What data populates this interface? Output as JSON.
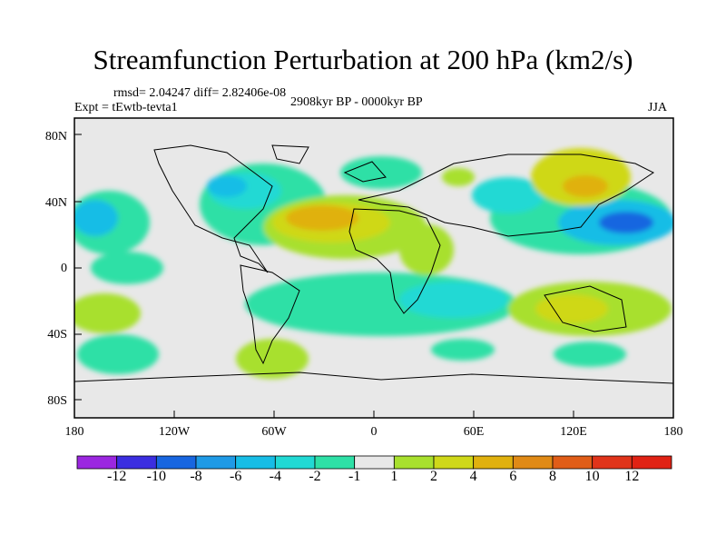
{
  "title": "Streamfunction Perturbation at 200 hPa (km2/s)",
  "stats": "rmsd= 2.04247 diff= 2.82406e-08",
  "experiment": "Expt = tEwtb-tevta1",
  "period": "2908kyr BP - 0000kyr BP",
  "season": "JJA",
  "lat_labels": [
    "80N",
    "40N",
    "0",
    "40S",
    "80S"
  ],
  "lon_labels": [
    "180",
    "120W",
    "60W",
    "0",
    "60E",
    "120E",
    "180"
  ],
  "colorbar": {
    "labels": [
      "-12",
      "-10",
      "-8",
      "-6",
      "-4",
      "-2",
      "-1",
      "1",
      "2",
      "4",
      "6",
      "8",
      "10",
      "12"
    ],
    "colors": [
      "#9b27e0",
      "#3b2ee0",
      "#1866e0",
      "#1f9ae6",
      "#17bde6",
      "#21d9d4",
      "#2ee0a6",
      "#e8e8e8",
      "#a8e02e",
      "#cfd819",
      "#e0b10f",
      "#e08a16",
      "#e05d18",
      "#e02214"
    ]
  },
  "colors": {
    "ocean_bg": "#e8e8e8",
    "coast": "#000000"
  }
}
